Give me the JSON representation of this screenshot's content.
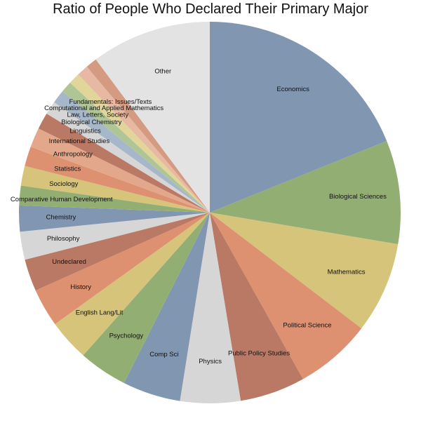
{
  "chart_data": {
    "type": "pie",
    "title": "Ratio of People Who Declared Their Primary Major",
    "start_angle_deg": 0,
    "direction": "clockwise",
    "slices": [
      {
        "label": "Economics",
        "value": 21.5,
        "color": "#8196b1"
      },
      {
        "label": "Biological Sciences",
        "value": 10.0,
        "color": "#93ae73"
      },
      {
        "label": "Mathematics",
        "value": 8.8,
        "color": "#d5c47a"
      },
      {
        "label": "Political Science",
        "value": 7.4,
        "color": "#dd9171"
      },
      {
        "label": "Public Policy Studies",
        "value": 6.3,
        "color": "#b97965"
      },
      {
        "label": "Physics",
        "value": 5.8,
        "color": "#d6d6d6"
      },
      {
        "label": "Comp Sci",
        "value": 5.6,
        "color": "#8196b1"
      },
      {
        "label": "Psychology",
        "value": 4.7,
        "color": "#93ae73"
      },
      {
        "label": "English Lang/Lit",
        "value": 4.0,
        "color": "#d5c47a"
      },
      {
        "label": "History",
        "value": 3.7,
        "color": "#dd9171"
      },
      {
        "label": "Undeclared",
        "value": 3.1,
        "color": "#b97965"
      },
      {
        "label": "Philosophy",
        "value": 2.7,
        "color": "#d6d6d6"
      },
      {
        "label": "Chemistry",
        "value": 2.5,
        "color": "#8196b1"
      },
      {
        "label": "Comparative Human Development",
        "value": 1.9,
        "color": "#93ae73"
      },
      {
        "label": "Sociology",
        "value": 1.9,
        "color": "#d5c47a"
      },
      {
        "label": "Statistics",
        "value": 1.9,
        "color": "#dd9171"
      },
      {
        "label": "Anthropology",
        "value": 1.9,
        "color": "#e3a88b"
      },
      {
        "label": "International Studies",
        "value": 1.6,
        "color": "#b97965"
      },
      {
        "label": "Linguistics",
        "value": 1.3,
        "color": "#d6d6d6"
      },
      {
        "label": "Biological Chemistry",
        "value": 1.3,
        "color": "#a7b7ca"
      },
      {
        "label": "Law, Letters, Society",
        "value": 1.1,
        "color": "#b0c596"
      },
      {
        "label": "Computational and Applied Mathematics",
        "value": 1.1,
        "color": "#e2d59a"
      },
      {
        "label": "Fundamentals: Issues/Texts",
        "value": 1.1,
        "color": "#e8b9a2"
      },
      {
        "label": "",
        "value": 1.1,
        "color": "#d49a82"
      },
      {
        "label": "Other",
        "value": 11.6,
        "color": "#e3e3e3"
      }
    ]
  }
}
